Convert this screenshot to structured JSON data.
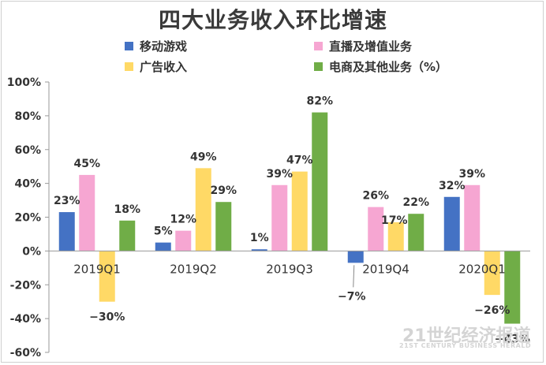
{
  "chart_data": {
    "type": "bar",
    "title": "四大业务收入环比增速",
    "categories": [
      "2019Q1",
      "2019Q2",
      "2019Q3",
      "2019Q4",
      "2020Q1"
    ],
    "series": [
      {
        "name": "移动游戏",
        "color": "#4472c4",
        "values": [
          23,
          5,
          1,
          -7,
          32
        ],
        "labels": [
          "23%",
          "5%",
          "1%",
          "−7%",
          "32%"
        ]
      },
      {
        "name": "直播及增值业务",
        "color": "#f6a6d2",
        "values": [
          45,
          12,
          39,
          26,
          39
        ],
        "labels": [
          "45%",
          "12%",
          "39%",
          "26%",
          "39%"
        ]
      },
      {
        "name": "广告收入",
        "color": "#ffd966",
        "values": [
          -30,
          49,
          47,
          17,
          -26
        ],
        "labels": [
          "−30%",
          "49%",
          "47%",
          "17%",
          "−26%"
        ]
      },
      {
        "name": "电商及其他业务（%）",
        "color": "#70ad47",
        "values": [
          18,
          29,
          82,
          22,
          -43
        ],
        "labels": [
          "18%",
          "29%",
          "82%",
          "22%",
          "−43%"
        ]
      }
    ],
    "ylim": [
      -60,
      100
    ],
    "yticks": [
      100,
      80,
      60,
      40,
      20,
      0,
      -20,
      -40,
      -60
    ],
    "ytick_labels": [
      "100%",
      "80%",
      "60%",
      "40%",
      "20%",
      "0%",
      "-20%",
      "-40%",
      "-60%"
    ],
    "legend_position": "top",
    "grid": false
  },
  "watermark": {
    "main": "21世纪经济报道",
    "sub": "21ST CENTURY BUSINESS HERALD"
  }
}
